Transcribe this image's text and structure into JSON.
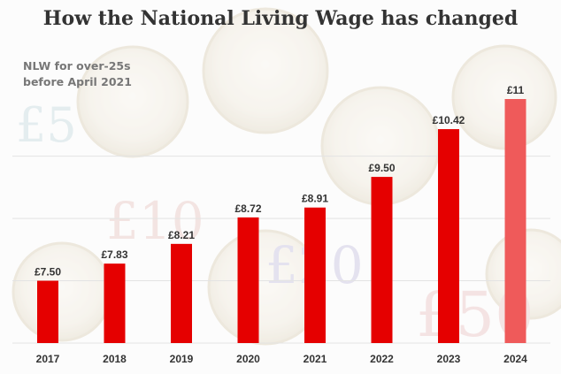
{
  "title": "How the National Living Wage has changed",
  "subtitle": "NLW for over-25s before April 2021",
  "colors": {
    "bar": "#e50000",
    "last_bar": "#ef5a5a",
    "title": "#333333",
    "subtitle": "#777777",
    "labels": "#333333"
  },
  "chart_data": {
    "type": "bar",
    "title": "How the National Living Wage has changed",
    "subtitle": "NLW for over-25s before April 2021",
    "categories": [
      "2017",
      "2018",
      "2019",
      "2020",
      "2021",
      "2022",
      "2023",
      "2024"
    ],
    "values": [
      7.5,
      7.83,
      8.21,
      8.72,
      8.91,
      9.5,
      10.42,
      11.0
    ],
    "value_labels": [
      "£7.50",
      "£7.83",
      "£8.21",
      "£8.72",
      "£8.91",
      "£9.50",
      "£10.42",
      "£11"
    ],
    "xlabel": "",
    "ylabel": "",
    "ylim": [
      6.3,
      11
    ],
    "grid": true,
    "legend": "none"
  }
}
